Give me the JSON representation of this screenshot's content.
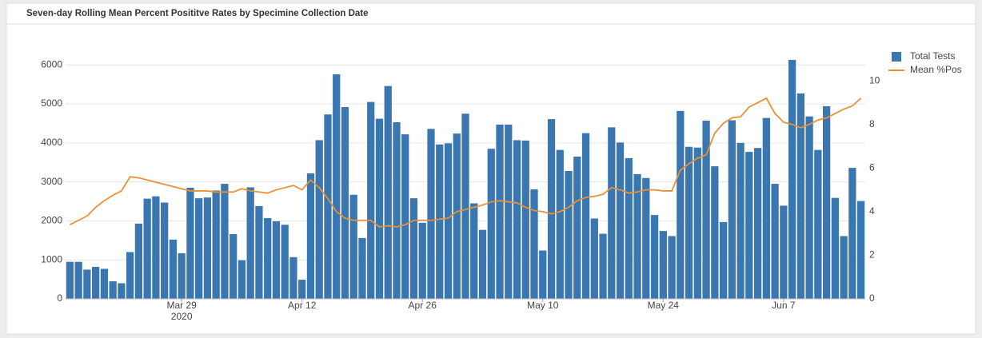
{
  "chart_data": {
    "type": "bar_line",
    "title": "Seven-day Rolling Mean Percent Posititve Rates by Specimine Collection Date",
    "x": [
      "2020-03-16",
      "2020-03-17",
      "2020-03-18",
      "2020-03-19",
      "2020-03-20",
      "2020-03-21",
      "2020-03-22",
      "2020-03-23",
      "2020-03-24",
      "2020-03-25",
      "2020-03-26",
      "2020-03-27",
      "2020-03-28",
      "2020-03-29",
      "2020-03-30",
      "2020-03-31",
      "2020-04-01",
      "2020-04-02",
      "2020-04-03",
      "2020-04-04",
      "2020-04-05",
      "2020-04-06",
      "2020-04-07",
      "2020-04-08",
      "2020-04-09",
      "2020-04-10",
      "2020-04-11",
      "2020-04-12",
      "2020-04-13",
      "2020-04-14",
      "2020-04-15",
      "2020-04-16",
      "2020-04-17",
      "2020-04-18",
      "2020-04-19",
      "2020-04-20",
      "2020-04-21",
      "2020-04-22",
      "2020-04-23",
      "2020-04-24",
      "2020-04-25",
      "2020-04-26",
      "2020-04-27",
      "2020-04-28",
      "2020-04-29",
      "2020-04-30",
      "2020-05-01",
      "2020-05-02",
      "2020-05-03",
      "2020-05-04",
      "2020-05-05",
      "2020-05-06",
      "2020-05-07",
      "2020-05-08",
      "2020-05-09",
      "2020-05-10",
      "2020-05-11",
      "2020-05-12",
      "2020-05-13",
      "2020-05-14",
      "2020-05-15",
      "2020-05-16",
      "2020-05-17",
      "2020-05-18",
      "2020-05-19",
      "2020-05-20",
      "2020-05-21",
      "2020-05-22",
      "2020-05-23",
      "2020-05-24",
      "2020-05-25",
      "2020-05-26",
      "2020-05-27",
      "2020-05-28",
      "2020-05-29",
      "2020-05-30",
      "2020-05-31",
      "2020-06-01",
      "2020-06-02",
      "2020-06-03",
      "2020-06-04",
      "2020-06-05",
      "2020-06-06",
      "2020-06-07",
      "2020-06-08",
      "2020-06-09",
      "2020-06-10",
      "2020-06-11",
      "2020-06-12",
      "2020-06-13",
      "2020-06-14",
      "2020-06-15",
      "2020-06-16"
    ],
    "series": [
      {
        "name": "Total Tests",
        "type": "bar",
        "color": "#3a76b0",
        "values": [
          950,
          950,
          750,
          820,
          770,
          450,
          400,
          1200,
          1930,
          2570,
          2630,
          2470,
          1520,
          1170,
          2850,
          2580,
          2600,
          2780,
          2950,
          1660,
          990,
          2860,
          2380,
          2070,
          1990,
          1900,
          1070,
          490,
          3220,
          4070,
          4730,
          5760,
          4920,
          2670,
          1560,
          5050,
          4620,
          5460,
          4530,
          4220,
          2580,
          1950,
          4360,
          3960,
          3990,
          4240,
          4750,
          2450,
          1770,
          3850,
          4470,
          4470,
          4070,
          4060,
          2810,
          1240,
          4610,
          3820,
          3280,
          3650,
          4250,
          2060,
          1670,
          4400,
          4010,
          3610,
          3200,
          3100,
          2150,
          1740,
          1610,
          4820,
          3900,
          3880,
          4570,
          3400,
          1970,
          4580,
          4000,
          3770,
          3870,
          4640,
          2950,
          2390,
          6130,
          5270,
          4680,
          3820,
          4940,
          2590,
          1610,
          3360,
          2510
        ]
      },
      {
        "name": "Mean %Pos",
        "type": "line",
        "axis": "y2",
        "color": "#e8913a",
        "values": [
          3.4,
          3.6,
          3.8,
          4.2,
          4.5,
          4.75,
          4.95,
          5.6,
          5.55,
          5.45,
          5.35,
          5.25,
          5.15,
          5.05,
          4.95,
          4.95,
          4.95,
          4.9,
          4.9,
          4.9,
          5.05,
          4.95,
          4.9,
          4.85,
          5.0,
          5.1,
          5.2,
          5.0,
          5.45,
          5.1,
          4.6,
          4.0,
          3.7,
          3.6,
          3.6,
          3.6,
          3.3,
          3.35,
          3.3,
          3.4,
          3.6,
          3.6,
          3.6,
          3.65,
          3.7,
          4.0,
          4.1,
          4.2,
          4.3,
          4.45,
          4.5,
          4.45,
          4.4,
          4.2,
          4.05,
          4.0,
          3.9,
          4.0,
          4.2,
          4.5,
          4.65,
          4.7,
          4.8,
          5.1,
          5.0,
          4.85,
          4.9,
          5.0,
          5.0,
          4.95,
          4.95,
          5.9,
          6.2,
          6.45,
          6.6,
          7.6,
          8.05,
          8.3,
          8.35,
          8.8,
          9.0,
          9.2,
          8.5,
          8.1,
          8.0,
          7.85,
          8.0,
          8.2,
          8.3,
          8.5,
          8.7,
          8.85,
          9.2
        ]
      }
    ],
    "xlim": [
      "2020-03-15T12:00",
      "2020-06-16T12:00"
    ],
    "xticks": [
      {
        "value": "2020-03-29",
        "label": "Mar 29",
        "sublabel": "2020"
      },
      {
        "value": "2020-04-12",
        "label": "Apr 12"
      },
      {
        "value": "2020-04-26",
        "label": "Apr 26"
      },
      {
        "value": "2020-05-10",
        "label": "May 10"
      },
      {
        "value": "2020-05-24",
        "label": "May 24"
      },
      {
        "value": "2020-06-07",
        "label": "Jun 7"
      }
    ],
    "ylim": [
      0,
      6600
    ],
    "yticks": [
      0,
      1000,
      2000,
      3000,
      4000,
      5000,
      6000
    ],
    "y2lim": [
      0,
      11.8
    ],
    "y2ticks": [
      0,
      2,
      4,
      6,
      8,
      10
    ],
    "grid": true
  }
}
